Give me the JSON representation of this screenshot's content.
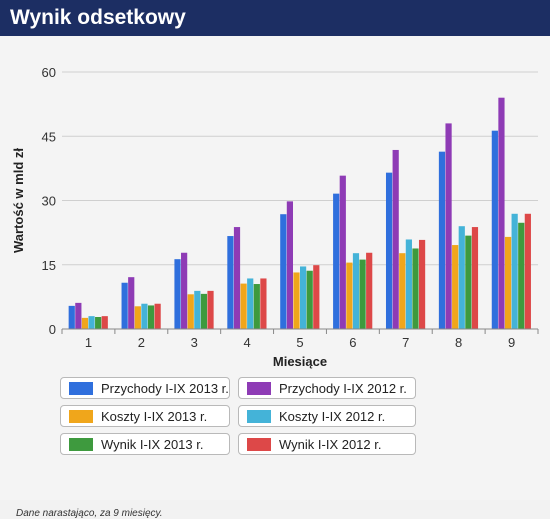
{
  "header": {
    "title": "Wynik odsetkowy"
  },
  "footnote": "Dane narastająco,  za 9 miesięcy.",
  "chart_data": {
    "type": "bar",
    "xlabel": "Miesiące",
    "ylabel": "Wartość w mld zł",
    "ylim": [
      0,
      60
    ],
    "yticks": [
      "0",
      "15",
      "30",
      "45",
      "60"
    ],
    "categories": [
      "1",
      "2",
      "3",
      "4",
      "5",
      "6",
      "7",
      "8",
      "9"
    ],
    "grid": true,
    "legend_position": "bottom",
    "series": [
      {
        "name": "Przychody I-IX 2013 r.",
        "color": "#2f6fdd",
        "values": [
          5.4,
          10.8,
          16.3,
          21.7,
          26.8,
          31.6,
          36.5,
          41.4,
          46.3
        ]
      },
      {
        "name": "Przychody I-IX 2012 r.",
        "color": "#8e3bb5",
        "values": [
          6.1,
          12.1,
          17.8,
          23.8,
          29.8,
          35.8,
          41.8,
          48.0,
          54.0
        ]
      },
      {
        "name": "Koszty I-IX 2013 r.",
        "color": "#f0a61b",
        "values": [
          2.6,
          5.3,
          8.1,
          10.6,
          13.2,
          15.5,
          17.7,
          19.6,
          21.5
        ]
      },
      {
        "name": "Koszty I-IX 2012 r.",
        "color": "#44b3d8",
        "values": [
          3.0,
          5.9,
          8.9,
          11.8,
          14.6,
          17.7,
          20.9,
          24.0,
          26.9
        ]
      },
      {
        "name": "Wynik I-IX 2013 r.",
        "color": "#3e9a3e",
        "values": [
          2.8,
          5.5,
          8.2,
          10.5,
          13.6,
          16.2,
          18.8,
          21.8,
          24.8
        ]
      },
      {
        "name": "Wynik I-IX 2012 r.",
        "color": "#dd4848",
        "values": [
          3.0,
          5.9,
          8.9,
          11.8,
          14.9,
          17.8,
          20.8,
          23.8,
          26.9
        ]
      }
    ]
  }
}
